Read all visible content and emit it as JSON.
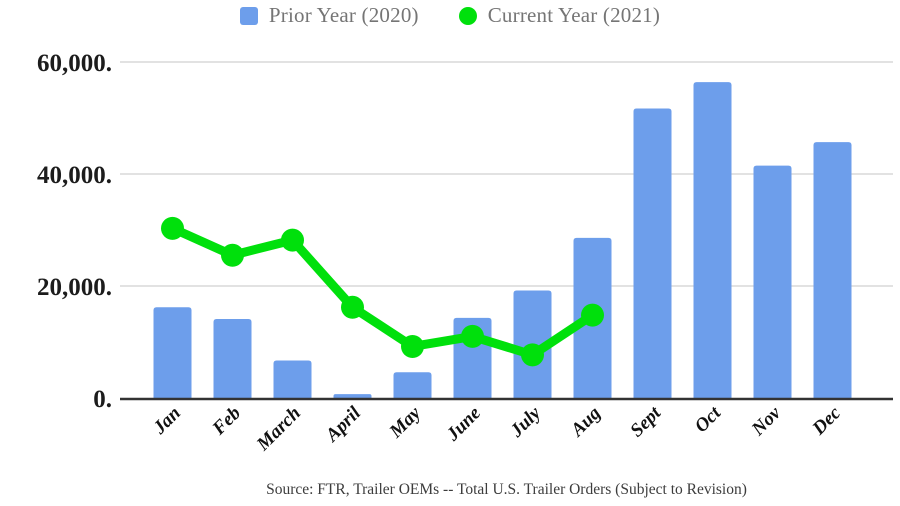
{
  "legend": {
    "items": [
      {
        "label": "Prior Year (2020)",
        "marker": "square"
      },
      {
        "label": "Current Year (2021)",
        "marker": "circle"
      }
    ]
  },
  "chart_data": {
    "type": "combo",
    "title": "",
    "xlabel": "",
    "ylabel": "",
    "categories": [
      "Jan",
      "Feb",
      "March",
      "April",
      "May",
      "June",
      "July",
      "Aug",
      "Sept",
      "Oct",
      "Nov",
      "Dec"
    ],
    "series": [
      {
        "name": "Prior Year (2020)",
        "type": "bar",
        "color": "#6D9EEB",
        "values": [
          16200,
          14100,
          6700,
          700,
          4600,
          14300,
          19200,
          28600,
          51700,
          56400,
          41500,
          45700
        ]
      },
      {
        "name": "Current Year (2021)",
        "type": "line",
        "color": "#00E00C",
        "values": [
          30300,
          25500,
          28200,
          16200,
          9200,
          11000,
          7700,
          14800
        ]
      }
    ],
    "ylim": [
      0,
      60000
    ],
    "yticks": [
      {
        "value": 60000,
        "label": "60,000."
      },
      {
        "value": 40000,
        "label": "40,000."
      },
      {
        "value": 20000,
        "label": "20,000."
      },
      {
        "value": 0,
        "label": "0."
      }
    ],
    "grid": true,
    "legend_position": "top"
  },
  "footer": {
    "source": "Source: FTR, Trailer OEMs -- Total U.S. Trailer Orders (Subject to Revision)"
  },
  "colors": {
    "bar_blue": "#6D9EEB",
    "line_green": "#00E00C",
    "gridline": "#D9D9D9",
    "axis_line": "#333333",
    "legend_text": "#757575",
    "axis_text": "#1C1C1C",
    "source_text": "#3C3C3C"
  }
}
